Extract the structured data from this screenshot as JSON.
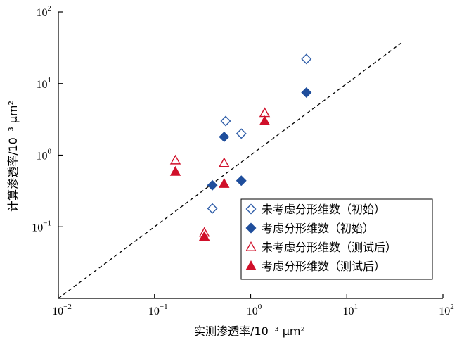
{
  "chart_data": {
    "type": "scatter",
    "x_scale": "log",
    "y_scale": "log",
    "xlim": [
      0.01,
      100
    ],
    "ylim": [
      0.01,
      100
    ],
    "xlabel": "实测渗透率/10⁻³ μm²",
    "ylabel": "计算渗透率/10⁻³ μm²",
    "x_ticks": [
      {
        "value": 0.01,
        "base": "10",
        "exp": "−2"
      },
      {
        "value": 0.1,
        "base": "10",
        "exp": "−1"
      },
      {
        "value": 1,
        "base": "10",
        "exp": "0"
      },
      {
        "value": 10,
        "base": "10",
        "exp": "1"
      },
      {
        "value": 100,
        "base": "10",
        "exp": "2"
      }
    ],
    "y_ticks": [
      {
        "value": 0.1,
        "base": "10",
        "exp": "−1"
      },
      {
        "value": 1,
        "base": "10",
        "exp": "0"
      },
      {
        "value": 10,
        "base": "10",
        "exp": "1"
      },
      {
        "value": 100,
        "base": "10",
        "exp": "2"
      }
    ],
    "reference_line": {
      "style": "dashed",
      "x": [
        0.01,
        38
      ],
      "y": [
        0.01,
        38
      ]
    },
    "legend_position": "bottom-right",
    "series": [
      {
        "name": "未考虑分形维数（初始）",
        "marker": "diamond-open",
        "color": "#2f5da8",
        "points": [
          [
            0.4,
            0.18
          ],
          [
            0.55,
            3.0
          ],
          [
            0.8,
            2.0
          ],
          [
            3.8,
            22
          ]
        ]
      },
      {
        "name": "考虑分形维数（初始）",
        "marker": "diamond-filled",
        "color": "#1f4e9c",
        "points": [
          [
            0.4,
            0.38
          ],
          [
            0.53,
            1.8
          ],
          [
            0.8,
            0.44
          ],
          [
            3.8,
            7.5
          ]
        ]
      },
      {
        "name": "未考虑分形维数（测试后）",
        "marker": "triangle-open",
        "color": "#d0102a",
        "points": [
          [
            0.165,
            0.85
          ],
          [
            0.33,
            0.083
          ],
          [
            0.53,
            0.78
          ],
          [
            1.4,
            3.9
          ]
        ]
      },
      {
        "name": "考虑分形维数（测试后）",
        "marker": "triangle-filled",
        "color": "#d0102a",
        "points": [
          [
            0.165,
            0.59
          ],
          [
            0.33,
            0.073
          ],
          [
            0.53,
            0.4
          ],
          [
            1.4,
            3.0
          ]
        ]
      }
    ]
  }
}
